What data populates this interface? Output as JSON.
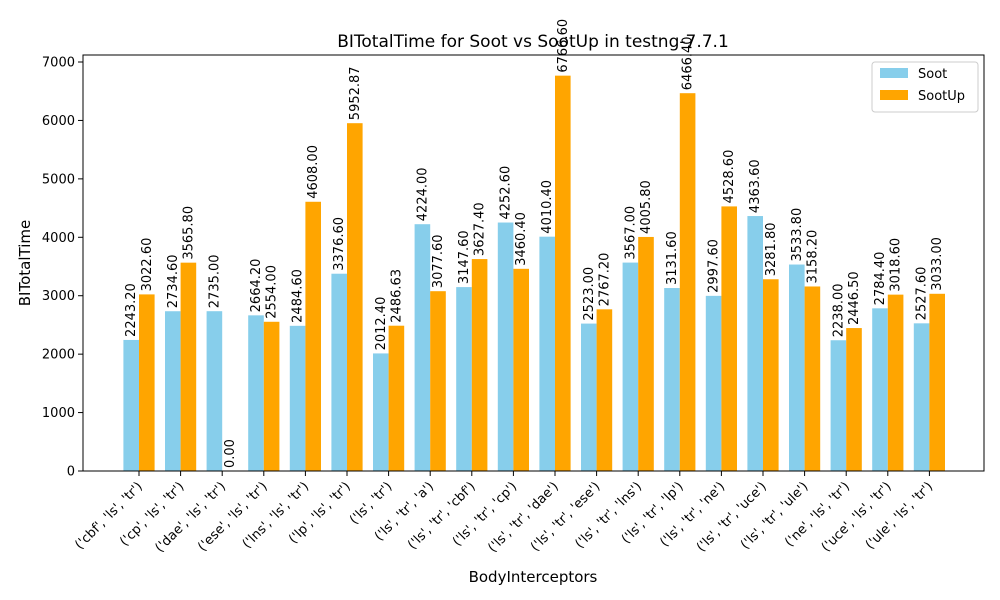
{
  "chart_data": {
    "type": "bar",
    "title": "BITotalTime for Soot vs SootUp in testng-7.7.1",
    "xlabel": "BodyInterceptors",
    "ylabel": "BITotalTime",
    "ylim": [
      0,
      7120
    ],
    "yticks": [
      0,
      1000,
      2000,
      3000,
      4000,
      5000,
      6000,
      7000
    ],
    "grid": false,
    "legend_position": "top-right",
    "categories": [
      "('cbf', 'ls', 'tr')",
      "('cp', 'ls', 'tr')",
      "('dae', 'ls', 'tr')",
      "('ese', 'ls', 'tr')",
      "('lns', 'ls', 'tr')",
      "('lp', 'ls', 'tr')",
      "('ls', 'tr')",
      "('ls', 'tr', 'a')",
      "('ls', 'tr', 'cbf')",
      "('ls', 'tr', 'cp')",
      "('ls', 'tr', 'dae')",
      "('ls', 'tr', 'ese')",
      "('ls', 'tr', 'lns')",
      "('ls', 'tr', 'lp')",
      "('ls', 'tr', 'ne')",
      "('ls', 'tr', 'uce')",
      "('ls', 'tr', 'ule')",
      "('ne', 'ls', 'tr')",
      "('uce', 'ls', 'tr')",
      "('ule', 'ls', 'tr')"
    ],
    "series": [
      {
        "name": "Soot",
        "color": "#87ceeb",
        "values": [
          2243.2,
          2734.6,
          2735.0,
          2664.2,
          2484.6,
          3376.6,
          2012.4,
          4224.0,
          3147.6,
          4252.6,
          4010.4,
          2523.0,
          3567.0,
          3131.6,
          2997.6,
          4363.6,
          3533.8,
          2238.0,
          2784.4,
          2527.6
        ],
        "labels": [
          "2243.20",
          "2734.60",
          "2735.00",
          "2664.20",
          "2484.60",
          "3376.60",
          "2012.40",
          "4224.00",
          "3147.60",
          "4252.60",
          "4010.40",
          "2523.00",
          "3567.00",
          "3131.60",
          "2997.60",
          "4363.60",
          "3533.80",
          "2238.00",
          "2784.40",
          "2527.60"
        ]
      },
      {
        "name": "SootUp",
        "color": "#ffa500",
        "values": [
          3022.6,
          3565.8,
          0.0,
          2554.0,
          4608.0,
          5952.87,
          2486.63,
          3077.6,
          3627.4,
          3460.4,
          6766.6,
          2767.2,
          4005.8,
          6466.4,
          4528.6,
          3281.8,
          3158.2,
          2446.5,
          3018.6,
          3033.0
        ],
        "labels": [
          "3022.60",
          "3565.80",
          "0.00",
          "2554.00",
          "4608.00",
          "5952.87",
          "2486.63",
          "3077.60",
          "3627.40",
          "3460.40",
          "6766.60",
          "2767.20",
          "4005.80",
          "6466.40",
          "4528.60",
          "3281.80",
          "3158.20",
          "2446.50",
          "3018.60",
          "3033.00"
        ]
      }
    ]
  }
}
